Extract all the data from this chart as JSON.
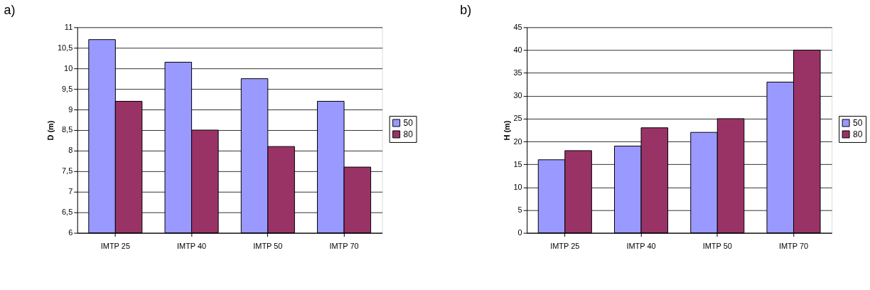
{
  "chart_data": [
    {
      "type": "bar",
      "title": "a)",
      "ylabel": "D (m)",
      "categories": [
        "IMTP 25",
        "IMTP 40",
        "IMTP 50",
        "IMTP 70"
      ],
      "series": [
        {
          "name": "50",
          "color": "#9999ff",
          "values": [
            10.7,
            10.15,
            9.75,
            9.2
          ]
        },
        {
          "name": "80",
          "color": "#993366",
          "values": [
            9.2,
            8.5,
            8.1,
            7.6
          ]
        }
      ],
      "ylim": [
        6,
        11
      ],
      "yticks": [
        6,
        {
          "value": 6.5,
          "label": "6,5"
        },
        7,
        {
          "value": 7.5,
          "label": "7,5"
        },
        8,
        {
          "value": 8.5,
          "label": "8,5"
        },
        9,
        {
          "value": 9.5,
          "label": "9,5"
        },
        10,
        {
          "value": 10.5,
          "label": "10,5"
        },
        11
      ],
      "grid": "y",
      "legend": "right"
    },
    {
      "type": "bar",
      "title": "b)",
      "ylabel": "H (m)",
      "categories": [
        "IMTP 25",
        "IMTP 40",
        "IMTP 50",
        "IMTP 70"
      ],
      "series": [
        {
          "name": "50",
          "color": "#9999ff",
          "values": [
            16,
            19,
            22,
            33
          ]
        },
        {
          "name": "80",
          "color": "#993366",
          "values": [
            18,
            23,
            25,
            40
          ]
        }
      ],
      "ylim": [
        0,
        45
      ],
      "yticks": [
        0,
        5,
        10,
        15,
        20,
        25,
        30,
        35,
        40,
        45
      ],
      "grid": "y",
      "legend": "right"
    }
  ]
}
